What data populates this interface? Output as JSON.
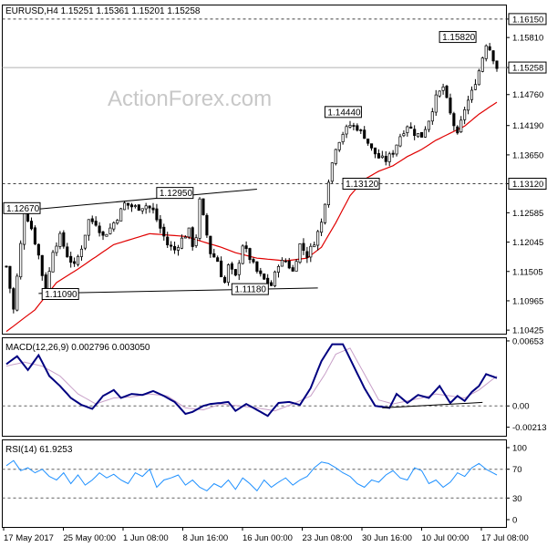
{
  "chart_data": {
    "type": "candlestick",
    "symbol_header": "EURUSD,H4  1.15251 1.15361 1.15201 1.15258",
    "watermark": "ActionForex.com",
    "colors": {
      "candle": "#000000",
      "moving_average": "#e00000",
      "macd_line": "#000080",
      "signal_line": "#c8a0c8",
      "rsi_line": "#1e90ff",
      "trendline": "#000000",
      "grid_dash": "#808080"
    },
    "price_axis": {
      "ylim": [
        1.1036,
        1.164
      ],
      "ticks": [
        "1.16150",
        "1.15810",
        "1.15258",
        "1.14760",
        "1.14190",
        "1.13650",
        "1.13120",
        "1.12585",
        "1.12045",
        "1.11505",
        "1.10965",
        "1.10425"
      ],
      "tick_values": [
        1.1615,
        1.1581,
        1.15258,
        1.1476,
        1.1419,
        1.1365,
        1.1312,
        1.12585,
        1.12045,
        1.11505,
        1.10965,
        1.10425
      ],
      "highlighted": [
        "1.16150",
        "1.15258",
        "1.13120"
      ]
    },
    "horizontal_levels": [
      {
        "value": 1.1615,
        "style": "dashed"
      },
      {
        "value": 1.15258,
        "style": "solid-gray"
      },
      {
        "value": 1.1312,
        "style": "dashed"
      }
    ],
    "annotations": [
      {
        "text": "1.12670",
        "bar": 0,
        "value": 1.1267
      },
      {
        "text": "1.11090",
        "bar": 11,
        "value": 1.1109
      },
      {
        "text": "1.12950",
        "bar": 43,
        "value": 1.1295
      },
      {
        "text": "1.11180",
        "bar": 64,
        "value": 1.1118
      },
      {
        "text": "1.14440",
        "bar": 90,
        "value": 1.1444
      },
      {
        "text": "1.13120",
        "bar": 95,
        "value": 1.1312
      },
      {
        "text": "1.15820",
        "bar": 122,
        "value": 1.1582
      }
    ],
    "trendlines": [
      {
        "bar1": 0,
        "v1": 1.126,
        "bar2": 70,
        "v2": 1.1302
      },
      {
        "bar1": 9,
        "v1": 1.111,
        "bar2": 87,
        "v2": 1.112
      }
    ],
    "x_labels": [
      "17 May 2017",
      "25 May 00:00",
      "1 Jun 08:00",
      "8 Jun 16:00",
      "16 Jun 00:00",
      "23 Jun 08:00",
      "30 Jun 16:00",
      "10 Jul 00:00",
      "17 Jul 08:00"
    ],
    "x_label_bars": [
      0,
      16,
      32,
      48,
      64,
      80,
      96,
      112,
      128
    ],
    "bar_count": 130,
    "anchors": [
      [
        0,
        1.116
      ],
      [
        2,
        1.108
      ],
      [
        4,
        1.12
      ],
      [
        5,
        1.1265
      ],
      [
        7,
        1.123
      ],
      [
        9,
        1.118
      ],
      [
        11,
        1.1109
      ],
      [
        13,
        1.119
      ],
      [
        15,
        1.1215
      ],
      [
        17,
        1.118
      ],
      [
        19,
        1.116
      ],
      [
        21,
        1.1195
      ],
      [
        23,
        1.1245
      ],
      [
        25,
        1.124
      ],
      [
        27,
        1.1215
      ],
      [
        29,
        1.123
      ],
      [
        31,
        1.125
      ],
      [
        33,
        1.1275
      ],
      [
        35,
        1.127
      ],
      [
        37,
        1.1268
      ],
      [
        39,
        1.1272
      ],
      [
        41,
        1.1262
      ],
      [
        43,
        1.123
      ],
      [
        45,
        1.12
      ],
      [
        47,
        1.119
      ],
      [
        49,
        1.121
      ],
      [
        51,
        1.1225
      ],
      [
        52,
        1.12
      ],
      [
        53,
        1.1215
      ],
      [
        54,
        1.128
      ],
      [
        55,
        1.125
      ],
      [
        57,
        1.1185
      ],
      [
        59,
        1.117
      ],
      [
        60,
        1.1145
      ],
      [
        61,
        1.113
      ],
      [
        62,
        1.116
      ],
      [
        64,
        1.114
      ],
      [
        66,
        1.12
      ],
      [
        68,
        1.1175
      ],
      [
        70,
        1.115
      ],
      [
        72,
        1.1135
      ],
      [
        74,
        1.1125
      ],
      [
        76,
        1.1165
      ],
      [
        78,
        1.117
      ],
      [
        80,
        1.115
      ],
      [
        82,
        1.12
      ],
      [
        84,
        1.118
      ],
      [
        86,
        1.1205
      ],
      [
        88,
        1.124
      ],
      [
        90,
        1.132
      ],
      [
        92,
        1.138
      ],
      [
        94,
        1.1405
      ],
      [
        96,
        1.142
      ],
      [
        98,
        1.1415
      ],
      [
        100,
        1.14
      ],
      [
        102,
        1.1375
      ],
      [
        104,
        1.136
      ],
      [
        106,
        1.1355
      ],
      [
        108,
        1.137
      ],
      [
        110,
        1.14
      ],
      [
        112,
        1.142
      ],
      [
        114,
        1.1405
      ],
      [
        116,
        1.14
      ],
      [
        118,
        1.143
      ],
      [
        120,
        1.147
      ],
      [
        122,
        1.149
      ],
      [
        124,
        1.144
      ],
      [
        126,
        1.14
      ],
      [
        128,
        1.145
      ],
      [
        130,
        1.148
      ],
      [
        132,
        1.152
      ],
      [
        134,
        1.157
      ],
      [
        135,
        1.156
      ],
      [
        137,
        1.1526
      ]
    ],
    "moving_average_anchors": [
      [
        0,
        1.104
      ],
      [
        8,
        1.108
      ],
      [
        14,
        1.113
      ],
      [
        20,
        1.1155
      ],
      [
        30,
        1.12
      ],
      [
        40,
        1.122
      ],
      [
        50,
        1.1215
      ],
      [
        60,
        1.1195
      ],
      [
        64,
        1.1185
      ],
      [
        70,
        1.1175
      ],
      [
        78,
        1.117
      ],
      [
        84,
        1.1175
      ],
      [
        88,
        1.1195
      ],
      [
        92,
        1.124
      ],
      [
        96,
        1.129
      ],
      [
        100,
        1.132
      ],
      [
        104,
        1.1335
      ],
      [
        108,
        1.1345
      ],
      [
        112,
        1.1362
      ],
      [
        116,
        1.1375
      ],
      [
        120,
        1.1392
      ],
      [
        124,
        1.1405
      ],
      [
        128,
        1.1418
      ],
      [
        132,
        1.144
      ],
      [
        137,
        1.1462
      ]
    ],
    "macd": {
      "label": "MACD(12,26,9) 0.002796 0.003050",
      "ticks": [
        "0.00653",
        "0.00",
        "-0.002138"
      ],
      "tick_values": [
        0.00653,
        0.0,
        -0.002138
      ],
      "ylim": [
        -0.003,
        0.0068
      ],
      "zero_line": 0.0,
      "macd_anchors": [
        [
          0,
          0.0042
        ],
        [
          3,
          0.005
        ],
        [
          6,
          0.0036
        ],
        [
          9,
          0.0051
        ],
        [
          12,
          0.003
        ],
        [
          15,
          0.002
        ],
        [
          18,
          0.0008
        ],
        [
          21,
          0.0001
        ],
        [
          24,
          -0.0003
        ],
        [
          27,
          0.001
        ],
        [
          30,
          0.0016
        ],
        [
          32,
          0.0008
        ],
        [
          35,
          0.0012
        ],
        [
          38,
          0.0011
        ],
        [
          41,
          0.0015
        ],
        [
          44,
          0.001
        ],
        [
          47,
          0.0004
        ],
        [
          50,
          -0.0008
        ],
        [
          52,
          -0.0006
        ],
        [
          55,
          0.0
        ],
        [
          57,
          0.0002
        ],
        [
          60,
          0.0003
        ],
        [
          62,
          0.0004
        ],
        [
          64,
          -0.0005
        ],
        [
          67,
          0.0002
        ],
        [
          70,
          -0.0004
        ],
        [
          73,
          -0.001
        ],
        [
          76,
          0.0003
        ],
        [
          79,
          0.0004
        ],
        [
          82,
          0.0001
        ],
        [
          85,
          0.0018
        ],
        [
          88,
          0.0045
        ],
        [
          91,
          0.0062
        ],
        [
          94,
          0.0062
        ],
        [
          97,
          0.004
        ],
        [
          100,
          0.0018
        ],
        [
          103,
          0.0
        ],
        [
          105,
          -0.0001
        ],
        [
          107,
          -0.0002
        ],
        [
          109,
          0.0012
        ],
        [
          112,
          0.0003
        ],
        [
          115,
          0.0011
        ],
        [
          118,
          0.0008
        ],
        [
          121,
          0.002
        ],
        [
          124,
          0.0003
        ],
        [
          126,
          0.001
        ],
        [
          128,
          0.0005
        ],
        [
          130,
          0.0014
        ],
        [
          132,
          0.002
        ],
        [
          134,
          0.0032
        ],
        [
          137,
          0.0028
        ]
      ],
      "signal_anchors": [
        [
          0,
          0.004
        ],
        [
          5,
          0.0044
        ],
        [
          10,
          0.004
        ],
        [
          15,
          0.003
        ],
        [
          20,
          0.0012
        ],
        [
          25,
          0.0002
        ],
        [
          30,
          0.0008
        ],
        [
          35,
          0.0009
        ],
        [
          40,
          0.0012
        ],
        [
          45,
          0.001
        ],
        [
          50,
          -0.0002
        ],
        [
          55,
          -0.0004
        ],
        [
          60,
          0.0002
        ],
        [
          65,
          0.0
        ],
        [
          70,
          -0.0002
        ],
        [
          75,
          -0.0005
        ],
        [
          80,
          0.0002
        ],
        [
          85,
          0.001
        ],
        [
          89,
          0.0032
        ],
        [
          92,
          0.0052
        ],
        [
          96,
          0.0058
        ],
        [
          100,
          0.0032
        ],
        [
          104,
          0.0006
        ],
        [
          108,
          0.0002
        ],
        [
          112,
          0.0005
        ],
        [
          116,
          0.0008
        ],
        [
          120,
          0.0012
        ],
        [
          124,
          0.001
        ],
        [
          128,
          0.0008
        ],
        [
          132,
          0.0016
        ],
        [
          137,
          0.003
        ]
      ],
      "trendline": {
        "bar1": 105,
        "v1": -0.0002,
        "bar2": 133,
        "v2": 0.00035
      }
    },
    "rsi": {
      "label": "RSI(14) 61.9253",
      "ticks": [
        "100",
        "70",
        "30",
        "0"
      ],
      "tick_values": [
        100,
        70,
        30,
        0
      ],
      "ylim": [
        0,
        100
      ],
      "levels": [
        70,
        30
      ],
      "anchors": [
        [
          0,
          75
        ],
        [
          2,
          82
        ],
        [
          4,
          68
        ],
        [
          6,
          72
        ],
        [
          8,
          65
        ],
        [
          10,
          70
        ],
        [
          12,
          60
        ],
        [
          14,
          55
        ],
        [
          16,
          65
        ],
        [
          18,
          50
        ],
        [
          20,
          62
        ],
        [
          22,
          48
        ],
        [
          24,
          55
        ],
        [
          26,
          65
        ],
        [
          28,
          58
        ],
        [
          30,
          63
        ],
        [
          32,
          55
        ],
        [
          34,
          50
        ],
        [
          36,
          65
        ],
        [
          38,
          60
        ],
        [
          40,
          70
        ],
        [
          42,
          45
        ],
        [
          44,
          55
        ],
        [
          46,
          58
        ],
        [
          48,
          62
        ],
        [
          50,
          48
        ],
        [
          52,
          55
        ],
        [
          54,
          45
        ],
        [
          56,
          40
        ],
        [
          58,
          50
        ],
        [
          60,
          45
        ],
        [
          62,
          55
        ],
        [
          64,
          42
        ],
        [
          66,
          58
        ],
        [
          68,
          50
        ],
        [
          70,
          40
        ],
        [
          72,
          55
        ],
        [
          74,
          45
        ],
        [
          76,
          52
        ],
        [
          78,
          58
        ],
        [
          80,
          48
        ],
        [
          82,
          55
        ],
        [
          84,
          60
        ],
        [
          86,
          72
        ],
        [
          88,
          80
        ],
        [
          90,
          78
        ],
        [
          92,
          72
        ],
        [
          94,
          65
        ],
        [
          96,
          60
        ],
        [
          98,
          50
        ],
        [
          100,
          45
        ],
        [
          102,
          55
        ],
        [
          104,
          52
        ],
        [
          106,
          62
        ],
        [
          108,
          68
        ],
        [
          110,
          58
        ],
        [
          112,
          55
        ],
        [
          114,
          72
        ],
        [
          116,
          68
        ],
        [
          118,
          50
        ],
        [
          120,
          55
        ],
        [
          122,
          45
        ],
        [
          124,
          52
        ],
        [
          126,
          65
        ],
        [
          128,
          60
        ],
        [
          130,
          72
        ],
        [
          132,
          78
        ],
        [
          134,
          70
        ],
        [
          137,
          62
        ]
      ]
    }
  }
}
